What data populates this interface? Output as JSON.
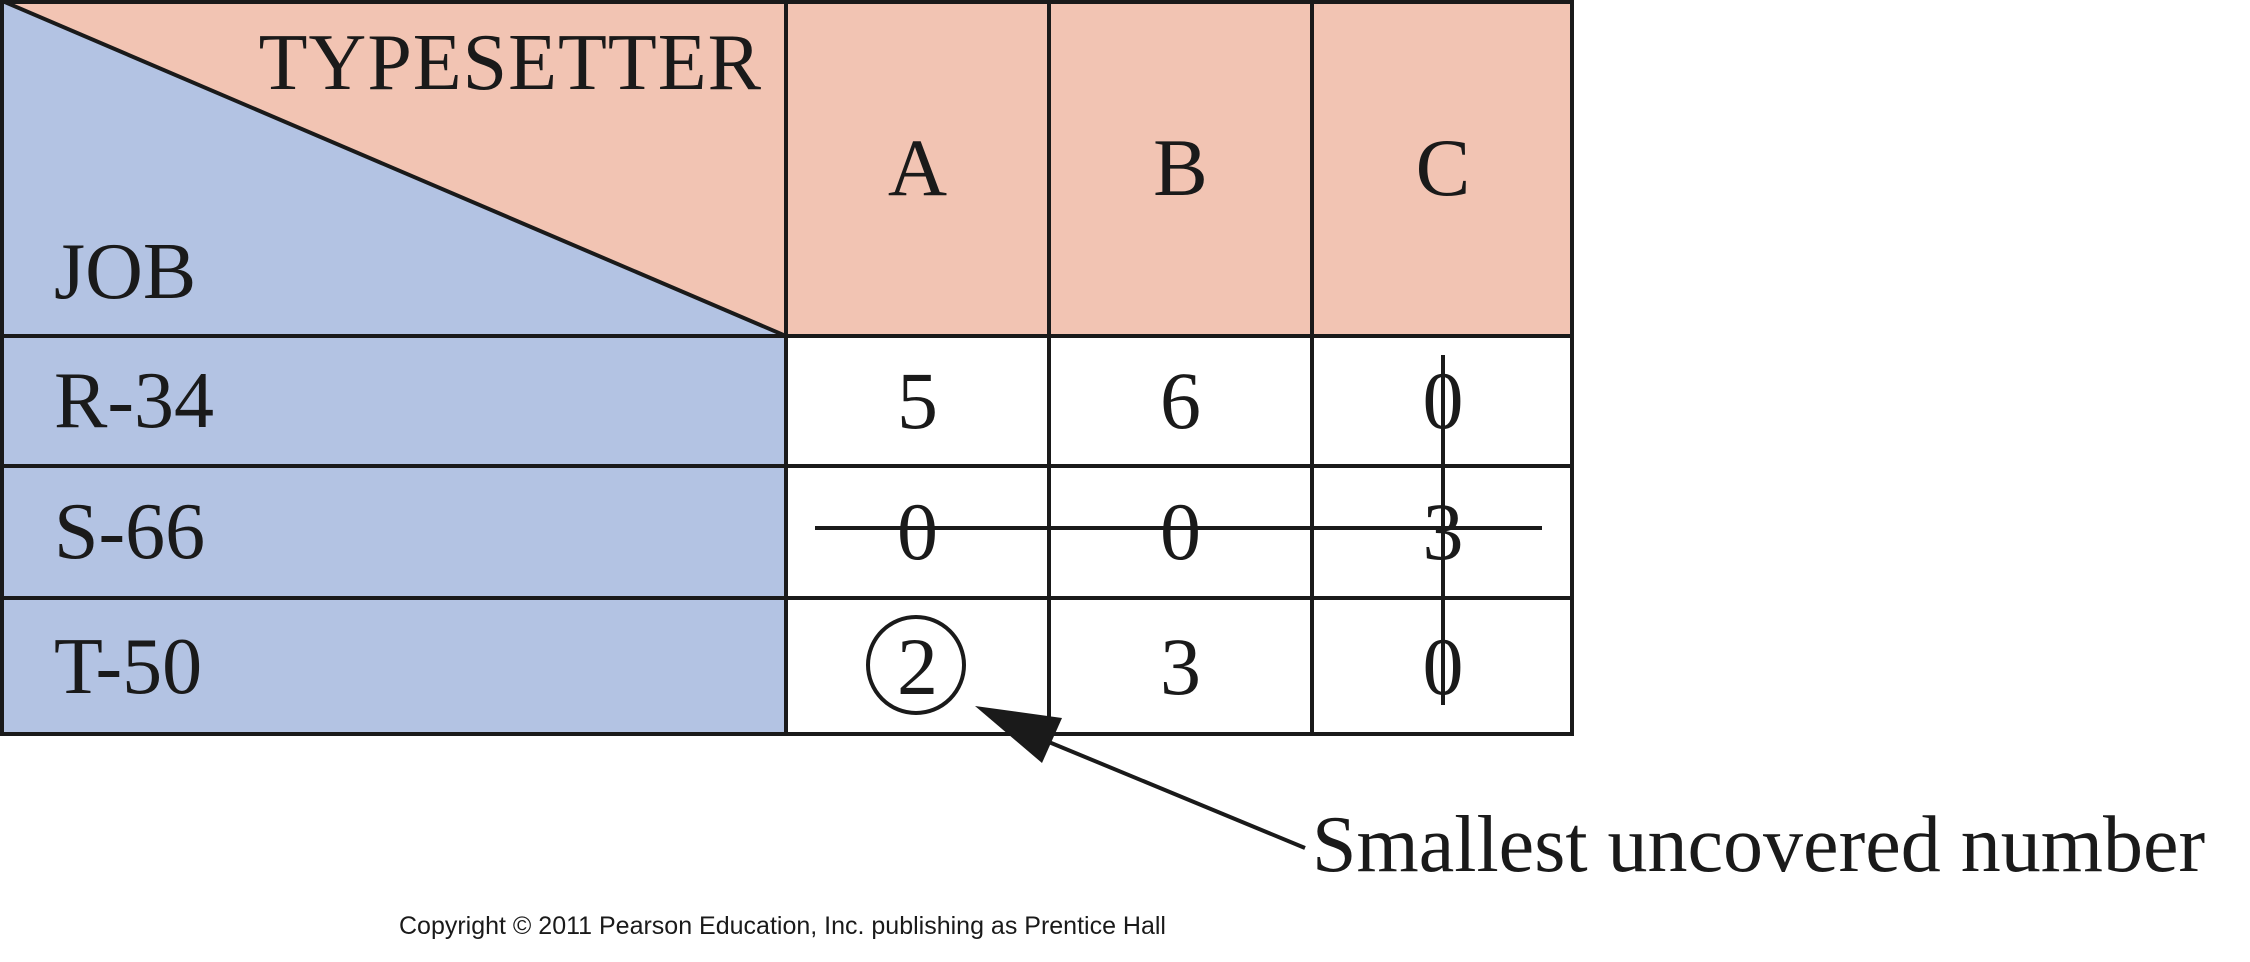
{
  "table": {
    "corner_top_label": "TYPESETTER",
    "corner_bottom_label": "JOB",
    "columns": [
      "A",
      "B",
      "C"
    ],
    "rows": [
      {
        "label": "R-34",
        "values": [
          "5",
          "6",
          "0"
        ]
      },
      {
        "label": "S-66",
        "values": [
          "0",
          "0",
          "3"
        ]
      },
      {
        "label": "T-50",
        "values": [
          "2",
          "3",
          "0"
        ]
      }
    ],
    "covered_row": "S-66",
    "covered_column": "C",
    "circled_cell": {
      "row": "T-50",
      "column": "A"
    }
  },
  "callout": {
    "text": "Smallest uncovered number"
  },
  "footer": {
    "copyright": "Copyright © 2011 Pearson Education, Inc. publishing as Prentice Hall"
  },
  "colors": {
    "column_header": "#f2c4b3",
    "row_header": "#b3c3e3",
    "line": "#1a1a1a"
  }
}
